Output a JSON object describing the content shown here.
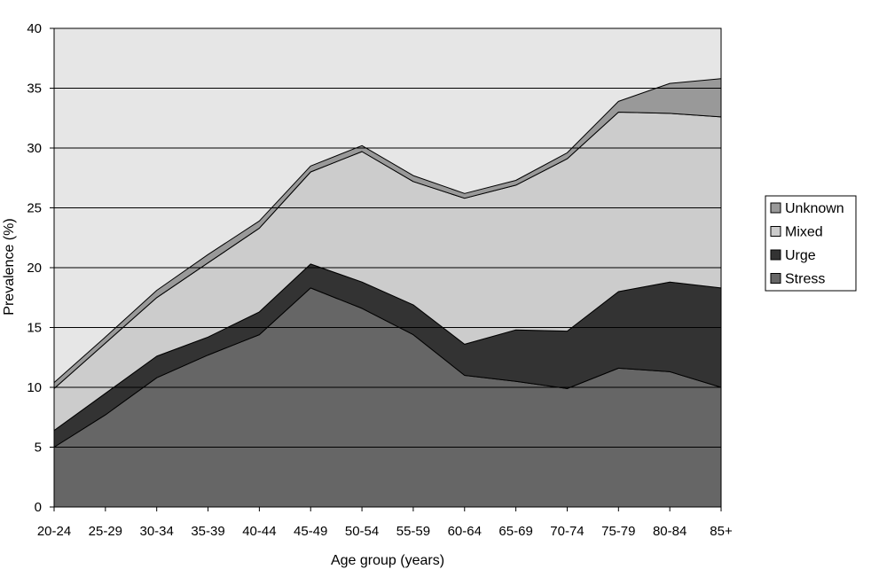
{
  "chart_data": {
    "type": "area",
    "stacked": true,
    "title": "",
    "xlabel": "Age group (years)",
    "ylabel": "Prevalence (%)",
    "ylim": [
      0,
      40
    ],
    "yticks": [
      0,
      5,
      10,
      15,
      20,
      25,
      30,
      35,
      40
    ],
    "grid": "horizontal",
    "legend_position": "right",
    "categories": [
      "20-24",
      "25-29",
      "30-34",
      "35-39",
      "40-44",
      "45-49",
      "50-54",
      "55-59",
      "60-64",
      "65-69",
      "70-74",
      "75-79",
      "80-84",
      "85+"
    ],
    "series": [
      {
        "name": "Stress",
        "color": "#666666",
        "values": [
          5.0,
          7.7,
          10.8,
          12.7,
          14.4,
          18.3,
          16.6,
          14.4,
          11.0,
          10.5,
          9.9,
          11.6,
          11.3,
          10.0
        ]
      },
      {
        "name": "Urge",
        "color": "#333333",
        "values": [
          1.4,
          1.8,
          1.8,
          1.5,
          1.9,
          2.0,
          2.2,
          2.5,
          2.6,
          4.3,
          4.8,
          6.4,
          7.5,
          8.3
        ]
      },
      {
        "name": "Mixed",
        "color": "#cccccc",
        "values": [
          3.5,
          4.2,
          4.9,
          6.2,
          7.0,
          7.7,
          10.9,
          10.3,
          12.2,
          12.1,
          14.4,
          15.0,
          14.1,
          14.3
        ]
      },
      {
        "name": "Unknown",
        "color": "#999999",
        "values": [
          0.5,
          0.5,
          0.6,
          0.7,
          0.6,
          0.5,
          0.5,
          0.5,
          0.4,
          0.4,
          0.5,
          0.9,
          2.5,
          3.2
        ]
      }
    ],
    "legend_order": [
      "Unknown",
      "Mixed",
      "Urge",
      "Stress"
    ],
    "plot_background": "#e6e6e6",
    "gridline_color": "#000000"
  }
}
